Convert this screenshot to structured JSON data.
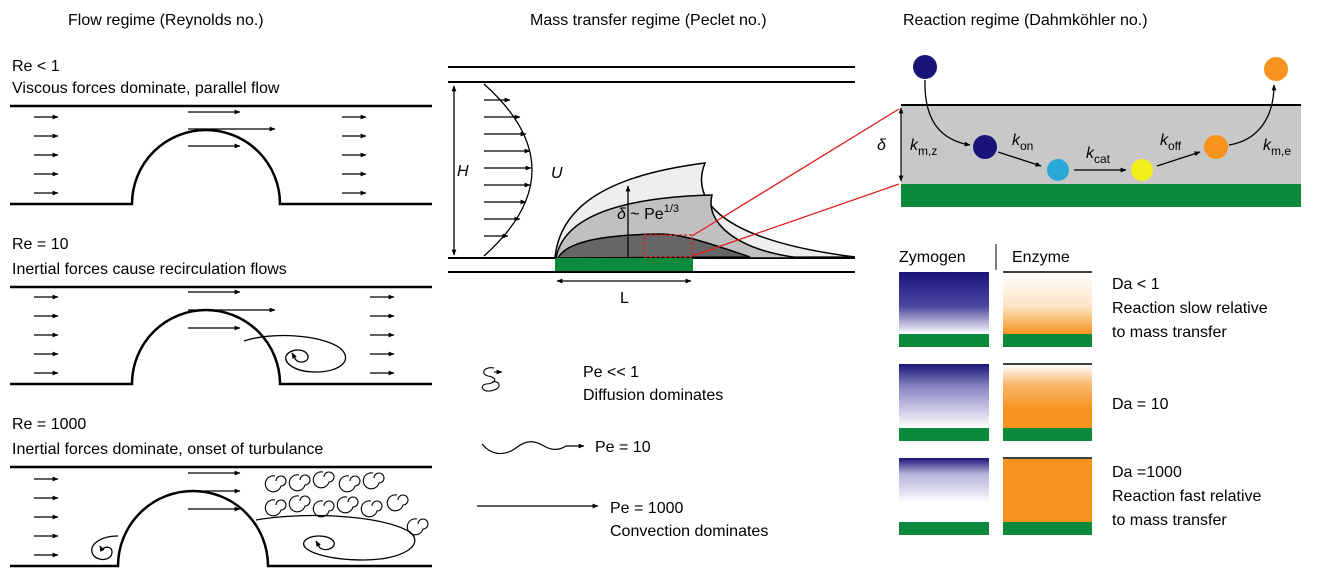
{
  "flow": {
    "heading": "Flow regime (Reynolds no.)",
    "panels": [
      {
        "re": "Re < 1",
        "desc": "Viscous forces dominate, parallel flow"
      },
      {
        "re": "Re = 10",
        "desc": "Inertial forces cause recirculation flows"
      },
      {
        "re": "Re = 1000",
        "desc": "Inertial forces dominate, onset of turbulance"
      }
    ]
  },
  "mass": {
    "heading": "Mass transfer regime (Peclet no.)",
    "h_label": "H",
    "u_label": "U",
    "l_label": "L",
    "delta_sym": "δ",
    "delta_rel": " ~ Pe",
    "delta_exp": "1/3",
    "legend": [
      {
        "pe": "Pe << 1",
        "desc": "Diffusion dominates"
      },
      {
        "pe": "Pe = 10",
        "desc": ""
      },
      {
        "pe": "Pe = 1000",
        "desc": "Convection dominates"
      }
    ]
  },
  "reaction": {
    "heading": "Reaction regime (Dahmköhler no.)",
    "delta": "δ",
    "rates": [
      {
        "k": "k",
        "sub": "m,z"
      },
      {
        "k": "k",
        "sub": "on"
      },
      {
        "k": "k",
        "sub": "cat"
      },
      {
        "k": "k",
        "sub": "off"
      },
      {
        "k": "k",
        "sub": "m,e"
      }
    ],
    "col_zymogen": "Zymogen",
    "col_enzyme": "Enzyme",
    "rows": [
      {
        "da": "Da < 1",
        "line2": "Reaction slow relative",
        "line3": "to mass transfer",
        "enzyme_level": 0.25
      },
      {
        "da": "Da = 10",
        "line2": "",
        "line3": "",
        "enzyme_level": 0.85
      },
      {
        "da": "Da =1000",
        "line2": "Reaction fast relative",
        "line3": "to mass transfer",
        "enzyme_level": 1.0
      }
    ]
  },
  "colors": {
    "surface_green": "#0a8a3a",
    "zymogen_navy": "#1a1478",
    "enzyme_orange": "#f7931e",
    "complex_cyan": "#29a8d8",
    "product_yellow": "#f2ee1a",
    "bulk_gray": "#c8c8c8",
    "red_line": "#e02020"
  }
}
